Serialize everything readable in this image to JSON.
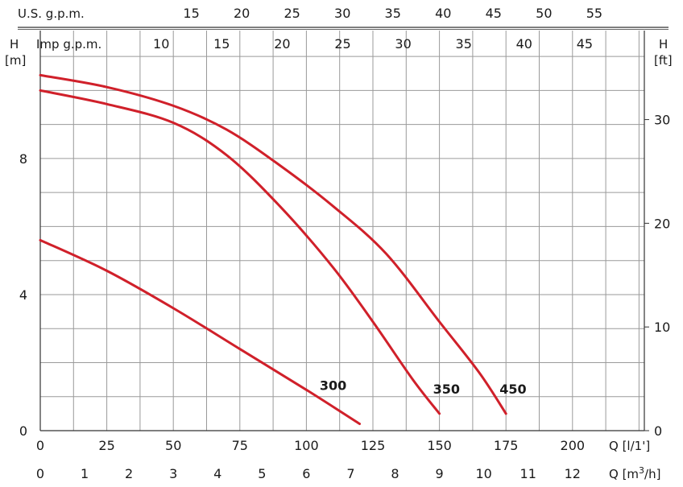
{
  "chart_data": {
    "type": "line",
    "colors": {
      "curve": "#d0202a",
      "grid": "#9a9a9a",
      "axis": "#333333"
    },
    "axes": {
      "top_usgpm": {
        "label": "U.S. g.p.m.",
        "ticks": [
          "15",
          "20",
          "25",
          "30",
          "35",
          "40",
          "45",
          "50",
          "55"
        ],
        "values": [
          15,
          20,
          25,
          30,
          35,
          40,
          45,
          50,
          55
        ]
      },
      "top_impgpm": {
        "label": "Imp g.p.m.",
        "ticks": [
          "10",
          "15",
          "20",
          "25",
          "30",
          "35",
          "40",
          "45"
        ],
        "values": [
          10,
          15,
          20,
          25,
          30,
          35,
          40,
          45
        ]
      },
      "left_m": {
        "label_h": "H",
        "label_unit": "[m]",
        "ticks": [
          "0",
          "4",
          "8"
        ],
        "values": [
          0,
          4,
          8
        ],
        "ylim": [
          0,
          11.76
        ]
      },
      "right_ft": {
        "label_h": "H",
        "label_unit": "[ft]",
        "ticks": [
          "0",
          "10",
          "20",
          "30"
        ],
        "values": [
          0,
          10,
          20,
          30
        ]
      },
      "bottom_lpm": {
        "label": "Q [l/1']",
        "ticks": [
          "0",
          "25",
          "50",
          "75",
          "100",
          "125",
          "150",
          "175",
          "200"
        ],
        "values": [
          0,
          25,
          50,
          75,
          100,
          125,
          150,
          175,
          200
        ],
        "xlim": [
          0,
          227
        ]
      },
      "bottom_m3h": {
        "label_prefix": "Q [m",
        "label_sup": "3",
        "label_suffix": "/h]",
        "ticks": [
          "0",
          "1",
          "2",
          "3",
          "4",
          "5",
          "6",
          "7",
          "8",
          "9",
          "10",
          "11",
          "12"
        ],
        "values": [
          0,
          1,
          2,
          3,
          4,
          5,
          6,
          7,
          8,
          9,
          10,
          11,
          12
        ]
      }
    },
    "grid": true,
    "series": [
      {
        "name": "300",
        "x": [
          0,
          25,
          50,
          75,
          100,
          120
        ],
        "y": [
          5.6,
          4.7,
          3.6,
          2.4,
          1.2,
          0.2
        ]
      },
      {
        "name": "350",
        "x": [
          0,
          25,
          50,
          70,
          90,
          110,
          125,
          140,
          150
        ],
        "y": [
          10.0,
          9.6,
          9.05,
          8.1,
          6.6,
          4.8,
          3.2,
          1.5,
          0.5
        ]
      },
      {
        "name": "450",
        "x": [
          0,
          25,
          50,
          70,
          90,
          110,
          130,
          150,
          165,
          175
        ],
        "y": [
          10.45,
          10.1,
          9.55,
          8.85,
          7.8,
          6.6,
          5.2,
          3.2,
          1.7,
          0.5
        ]
      }
    ]
  }
}
